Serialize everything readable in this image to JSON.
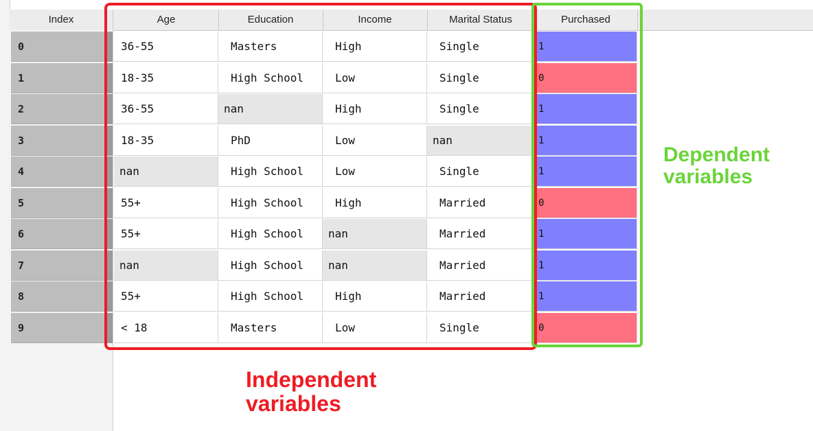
{
  "columns": {
    "index": "Index",
    "age": "Age",
    "education": "Education",
    "income": "Income",
    "marital_status": "Marital Status",
    "purchased": "Purchased"
  },
  "rows": [
    {
      "index": "0",
      "age": "36-55",
      "education": "Masters",
      "income": "High",
      "marital_status": "Single",
      "purchased": "1"
    },
    {
      "index": "1",
      "age": "18-35",
      "education": "High School",
      "income": "Low",
      "marital_status": "Single",
      "purchased": "0"
    },
    {
      "index": "2",
      "age": "36-55",
      "education": "nan",
      "income": "High",
      "marital_status": "Single",
      "purchased": "1"
    },
    {
      "index": "3",
      "age": "18-35",
      "education": "PhD",
      "income": "Low",
      "marital_status": "nan",
      "purchased": "1"
    },
    {
      "index": "4",
      "age": "nan",
      "education": "High School",
      "income": "Low",
      "marital_status": "Single",
      "purchased": "1"
    },
    {
      "index": "5",
      "age": "55+",
      "education": "High School",
      "income": "High",
      "marital_status": "Married",
      "purchased": "0"
    },
    {
      "index": "6",
      "age": "55+",
      "education": "High School",
      "income": "nan",
      "marital_status": "Married",
      "purchased": "1"
    },
    {
      "index": "7",
      "age": "nan",
      "education": "High School",
      "income": "nan",
      "marital_status": "Married",
      "purchased": "1"
    },
    {
      "index": "8",
      "age": "55+",
      "education": "High School",
      "income": "High",
      "marital_status": "Married",
      "purchased": "1"
    },
    {
      "index": "9",
      "age": "< 18",
      "education": "Masters",
      "income": "Low",
      "marital_status": "Single",
      "purchased": "0"
    }
  ],
  "annotations": {
    "independent": [
      "Independent",
      "variables"
    ],
    "dependent": [
      "Dependent",
      "variables"
    ]
  },
  "colors": {
    "purchased_1": "#8080ff",
    "purchased_0": "#ff7080",
    "independent_box": "#ee1c25",
    "dependent_box": "#6ad43a",
    "nan_cell": "#e6e6e6"
  }
}
